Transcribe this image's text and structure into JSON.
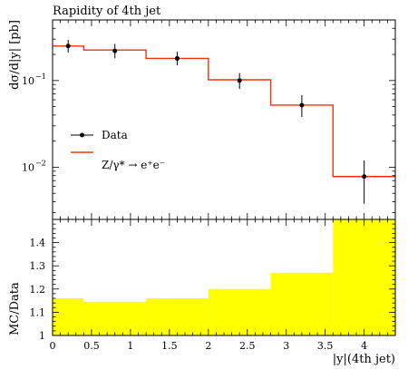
{
  "chart_data": [
    {
      "type": "line",
      "title": "Rapidity of 4th jet",
      "xlabel": "",
      "ylabel": "dσ/d|y| [pb]",
      "yscale": "log",
      "xlim": [
        0,
        4.4
      ],
      "ylim": [
        0.0025,
        0.5
      ],
      "y_ticks": [
        {
          "value": 0.1,
          "label": "10",
          "exp": "−1"
        },
        {
          "value": 0.01,
          "label": "10",
          "exp": "−2"
        }
      ],
      "legend": {
        "position": "middle-left"
      },
      "series": [
        {
          "name": "Data",
          "kind": "points",
          "color": "#000000",
          "x": [
            0.2,
            0.8,
            1.6,
            2.4,
            3.2,
            4.0
          ],
          "y": [
            0.25,
            0.22,
            0.18,
            0.1,
            0.052,
            0.0078
          ],
          "err_up": [
            0.045,
            0.045,
            0.035,
            0.022,
            0.016,
            0.0042
          ],
          "err_down": [
            0.04,
            0.04,
            0.03,
            0.02,
            0.014,
            0.004
          ]
        },
        {
          "name": "Z/γ* → e⁺e⁻",
          "kind": "histogram",
          "color": "#ee3311",
          "bin_edges": [
            0,
            0.4,
            1.2,
            2.0,
            2.8,
            3.6,
            4.4
          ],
          "values": [
            0.25,
            0.225,
            0.18,
            0.102,
            0.052,
            0.0078
          ]
        }
      ]
    },
    {
      "type": "area",
      "title": "",
      "xlabel": "|y|(4th jet)",
      "ylabel": "MC/Data",
      "xlim": [
        0,
        4.4
      ],
      "ylim": [
        1.0,
        1.5
      ],
      "x_ticks": [
        "0",
        "0.5",
        "1",
        "1.5",
        "2",
        "2.5",
        "3",
        "3.5",
        "4"
      ],
      "x_tick_values": [
        0,
        0.5,
        1,
        1.5,
        2,
        2.5,
        3,
        3.5,
        4
      ],
      "y_ticks": [
        "1",
        "1.1",
        "1.2",
        "1.3",
        "1.4"
      ],
      "y_tick_values": [
        1.0,
        1.1,
        1.2,
        1.3,
        1.4
      ],
      "series": [
        {
          "name": "",
          "kind": "band",
          "color": "#ffff00",
          "bin_edges": [
            0,
            0.4,
            1.2,
            2.0,
            2.8,
            3.6,
            4.4
          ],
          "upper": [
            1.16,
            1.145,
            1.16,
            1.2,
            1.27,
            1.5
          ],
          "lower": [
            1.0,
            1.0,
            1.0,
            1.0,
            1.0,
            1.0
          ]
        }
      ]
    }
  ]
}
